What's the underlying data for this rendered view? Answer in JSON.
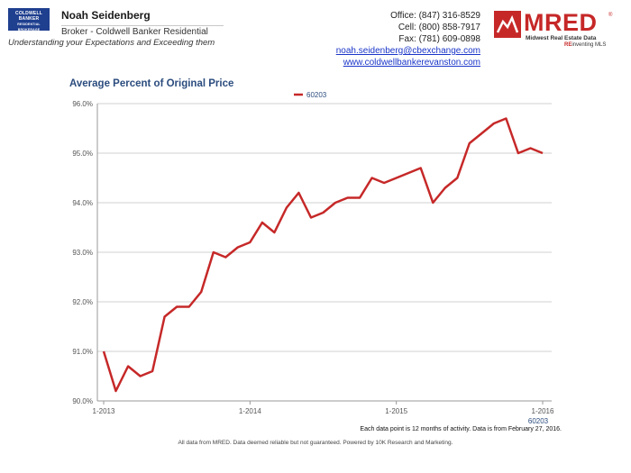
{
  "header": {
    "logo_text": [
      "COLDWELL",
      "BANKER",
      "RESIDENTIAL BROKERAGE"
    ],
    "agent_name": "Noah Seidenberg",
    "agent_title": "Broker - Coldwell Banker Residential",
    "tagline": "Understanding your Expectations and Exceeding them",
    "office": "Office: (847) 316-8529",
    "cell": "Cell: (800) 858-7917",
    "fax": "Fax: (781) 609-0898",
    "email": "noah.seidenberg@cbexchange.com",
    "website": "www.coldwellbankerevanston.com"
  },
  "mred": {
    "word": "MRED",
    "reg": "®",
    "line1": "Midwest Real Estate Data",
    "line2_prefix": "RE",
    "line2_rest": "inventing MLS"
  },
  "footer": {
    "note": "Each data point is 12 months of activity. Data is from February 27, 2016.",
    "disclaimer": "All data from MRED. Data deemed reliable but not guaranteed. Powered by 10K Research and Marketing."
  },
  "chart_data": {
    "type": "line",
    "title": "Average Percent of Original Price",
    "x_tick_labels": [
      "1-2013",
      "1-2014",
      "1-2015",
      "1-2016"
    ],
    "x_axis_note": "60203",
    "y_tick_labels": [
      "90.0%",
      "91.0%",
      "92.0%",
      "93.0%",
      "94.0%",
      "95.0%",
      "96.0%"
    ],
    "ylim": [
      90.0,
      96.0
    ],
    "grid": true,
    "legend_position": "top-center",
    "series": [
      {
        "name": "60203",
        "color": "#c62828",
        "x": [
          "1-2013",
          "2-2013",
          "3-2013",
          "4-2013",
          "5-2013",
          "6-2013",
          "7-2013",
          "8-2013",
          "9-2013",
          "10-2013",
          "11-2013",
          "12-2013",
          "1-2014",
          "2-2014",
          "3-2014",
          "4-2014",
          "5-2014",
          "6-2014",
          "7-2014",
          "8-2014",
          "9-2014",
          "10-2014",
          "11-2014",
          "12-2014",
          "1-2015",
          "2-2015",
          "3-2015",
          "4-2015",
          "5-2015",
          "6-2015",
          "7-2015",
          "8-2015",
          "9-2015",
          "10-2015",
          "11-2015",
          "12-2015",
          "1-2016"
        ],
        "values": [
          91.0,
          90.2,
          90.7,
          90.5,
          90.6,
          91.7,
          91.9,
          91.9,
          92.2,
          93.0,
          92.9,
          93.1,
          93.2,
          93.6,
          93.4,
          93.9,
          94.2,
          93.7,
          93.8,
          94.0,
          94.1,
          94.1,
          94.5,
          94.4,
          94.5,
          94.6,
          94.7,
          94.0,
          94.3,
          94.5,
          95.2,
          95.4,
          95.6,
          95.7,
          95.0,
          95.1,
          95.0
        ]
      }
    ]
  }
}
